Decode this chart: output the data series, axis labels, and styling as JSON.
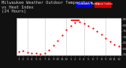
{
  "title": "Milwaukee Weather Outdoor Temperature\nvs Heat Index\n(24 Hours)",
  "bg_color": "#111111",
  "plot_bg_color": "#ffffff",
  "legend_blue_label": "Outdoor Temp",
  "legend_red_label": "Heat Index",
  "temp_data": [
    [
      1,
      57.5
    ],
    [
      2,
      58.5
    ],
    [
      3,
      57.0
    ],
    [
      4,
      56.5
    ],
    [
      5,
      56.0
    ],
    [
      6,
      55.5
    ],
    [
      7,
      56.5
    ],
    [
      8,
      59.0
    ],
    [
      9,
      63.0
    ],
    [
      10,
      67.0
    ],
    [
      11,
      71.5
    ],
    [
      12,
      76.0
    ],
    [
      13,
      79.5
    ],
    [
      14,
      82.5
    ],
    [
      15,
      83.0
    ],
    [
      16,
      81.5
    ],
    [
      17,
      79.5
    ],
    [
      18,
      77.5
    ],
    [
      19,
      75.0
    ],
    [
      20,
      72.0
    ],
    [
      21,
      69.0
    ],
    [
      22,
      66.0
    ],
    [
      23,
      63.5
    ],
    [
      24,
      62.0
    ]
  ],
  "heat_index_data": [
    [
      13,
      84
    ],
    [
      14,
      84
    ],
    [
      15,
      84
    ]
  ],
  "ylim": [
    54,
    86
  ],
  "ytick_vals": [
    55,
    60,
    65,
    70,
    75,
    80,
    85
  ],
  "ytick_labels": [
    "55",
    "60",
    "65",
    "70",
    "75",
    "80",
    "85"
  ],
  "xlim": [
    0.5,
    24.5
  ],
  "xtick_positions": [
    1,
    2,
    3,
    4,
    5,
    6,
    7,
    8,
    9,
    10,
    11,
    12,
    13,
    14,
    15,
    16,
    17,
    18,
    19,
    20,
    21,
    22,
    23,
    24
  ],
  "xtick_labels": [
    "1",
    "2",
    "3",
    "4",
    "5",
    "6",
    "7",
    "8",
    "9",
    "10",
    "11",
    "12",
    "1",
    "2",
    "3",
    "4",
    "5",
    "6",
    "7",
    "8",
    "9",
    "10",
    "11",
    "12"
  ],
  "grid_positions": [
    3,
    7,
    12,
    16,
    21
  ],
  "grid_color": "#999999",
  "temp_color": "#ff0000",
  "heat_color": "#ff0000",
  "dot_size": 2.5,
  "title_fontsize": 3.8,
  "tick_fontsize": 3.0,
  "legend_blue": "#0000cc",
  "legend_red": "#cc0000"
}
